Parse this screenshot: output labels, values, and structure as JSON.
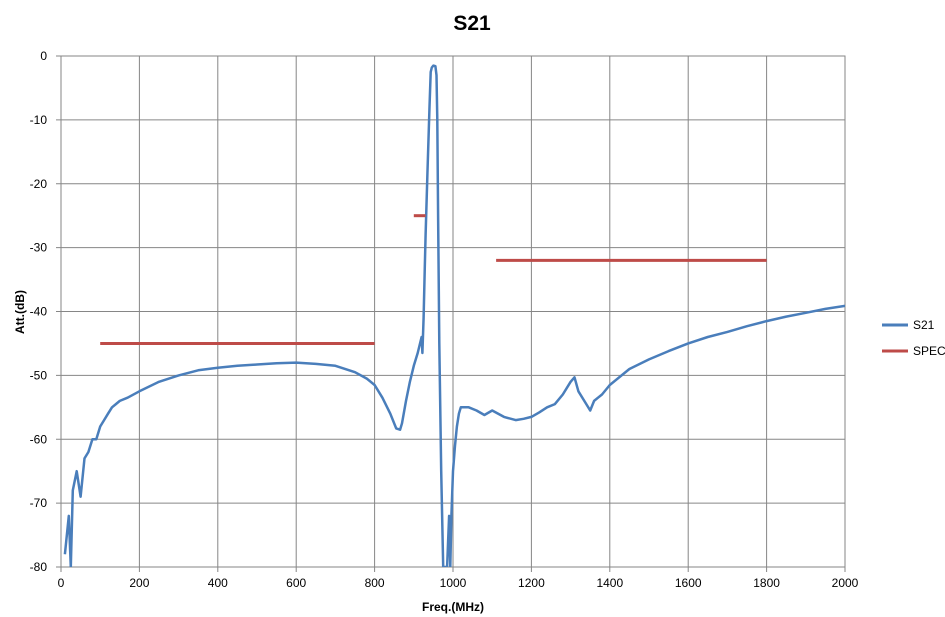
{
  "chart_data": {
    "type": "line",
    "title": "S21",
    "xlabel": "Freq.(MHz)",
    "ylabel": "Att.(dB)",
    "xlim": [
      0,
      2000
    ],
    "ylim": [
      -80,
      0
    ],
    "x_ticks": [
      "0",
      "200",
      "400",
      "600",
      "800",
      "1000",
      "1200",
      "1400",
      "1600",
      "1800",
      "2000"
    ],
    "y_ticks": [
      "0",
      "-10",
      "-20",
      "-30",
      "-40",
      "-50",
      "-60",
      "-70",
      "-80"
    ],
    "grid": true,
    "legend_position": "right",
    "series": [
      {
        "name": "S21",
        "color": "#4a7ebb",
        "x": [
          10,
          20,
          25,
          30,
          40,
          50,
          60,
          70,
          80,
          90,
          100,
          110,
          120,
          130,
          140,
          150,
          170,
          200,
          250,
          300,
          350,
          400,
          450,
          500,
          550,
          600,
          650,
          700,
          750,
          780,
          800,
          820,
          840,
          855,
          865,
          870,
          880,
          890,
          900,
          910,
          920,
          922,
          925,
          928,
          930,
          935,
          940,
          943,
          946,
          950,
          955,
          958,
          960,
          962,
          965,
          970,
          975,
          980,
          985,
          990,
          993,
          996,
          1000,
          1005,
          1010,
          1015,
          1020,
          1040,
          1060,
          1080,
          1100,
          1130,
          1160,
          1180,
          1200,
          1220,
          1240,
          1260,
          1280,
          1300,
          1310,
          1320,
          1340,
          1350,
          1360,
          1370,
          1380,
          1400,
          1450,
          1500,
          1550,
          1600,
          1650,
          1700,
          1750,
          1800,
          1850,
          1900,
          1950,
          2000
        ],
        "y": [
          -78,
          -72,
          -80,
          -68,
          -65,
          -69,
          -63,
          -62,
          -60,
          -60,
          -58,
          -57,
          -56,
          -55,
          -54.5,
          -54,
          -53.5,
          -52.5,
          -51,
          -50,
          -49.2,
          -48.8,
          -48.5,
          -48.3,
          -48.1,
          -48,
          -48.2,
          -48.5,
          -49.5,
          -50.5,
          -51.5,
          -53.5,
          -56,
          -58.3,
          -58.5,
          -57.5,
          -54,
          -51,
          -48.5,
          -46.5,
          -44,
          -46.5,
          -41,
          -33,
          -28,
          -18,
          -8,
          -2.5,
          -1.8,
          -1.5,
          -1.6,
          -3,
          -10,
          -25,
          -45,
          -65,
          -80,
          -80,
          -80,
          -72,
          -80,
          -72,
          -65,
          -61,
          -58,
          -56,
          -55,
          -55,
          -55.5,
          -56.2,
          -55.5,
          -56.5,
          -57,
          -56.8,
          -56.5,
          -55.8,
          -55,
          -54.5,
          -53,
          -51,
          -50.3,
          -52.5,
          -54.5,
          -55.5,
          -54,
          -53.5,
          -53,
          -51.5,
          -49,
          -47.5,
          -46.2,
          -45,
          -44,
          -43.2,
          -42.3,
          -41.5,
          -40.8,
          -40.2,
          -39.6,
          -39.1
        ]
      },
      {
        "name": "SPEC",
        "color": "#be4b48",
        "segments": [
          {
            "x": [
              100,
              800
            ],
            "y": [
              -45,
              -45
            ]
          },
          {
            "x": [
              900,
              930
            ],
            "y": [
              -25,
              -25
            ]
          },
          {
            "x": [
              1110,
              1800
            ],
            "y": [
              -32,
              -32
            ]
          }
        ]
      }
    ]
  }
}
